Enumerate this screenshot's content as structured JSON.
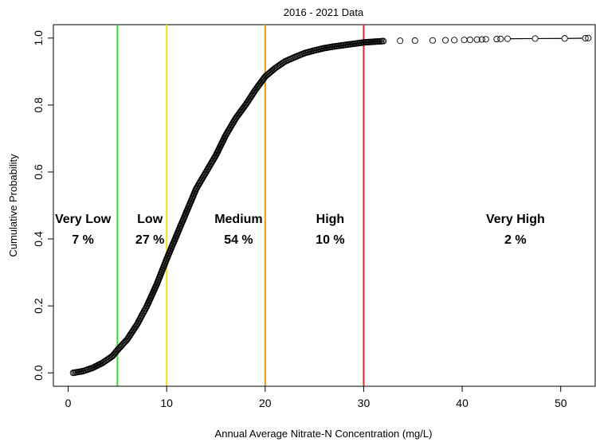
{
  "chart_data": {
    "type": "scatter",
    "title": "2016 - 2021 Data",
    "xlabel": "Annual Average Nitrate-N Concentration (mg/L)",
    "ylabel": "Cumulative Probability",
    "xlim": [
      -1.5,
      53.5
    ],
    "ylim": [
      -0.04,
      1.04
    ],
    "xticks": [
      0,
      10,
      20,
      30,
      40,
      50
    ],
    "yticks": [
      0.0,
      0.2,
      0.4,
      0.6,
      0.8,
      1.0
    ],
    "xtick_labels": [
      "0",
      "10",
      "20",
      "30",
      "40",
      "50"
    ],
    "ytick_labels": [
      "0.0",
      "0.2",
      "0.4",
      "0.6",
      "0.8",
      "1.0"
    ],
    "grid": false,
    "marker": "open circle",
    "series_color": "#000000",
    "thresholds": [
      {
        "x": 5,
        "color": "#33dd33"
      },
      {
        "x": 10,
        "color": "#f0e020"
      },
      {
        "x": 20,
        "color": "#e8951a"
      },
      {
        "x": 30,
        "color": "#e02828"
      }
    ],
    "annotations": [
      {
        "name": "Very Low",
        "percent": "7 %",
        "x": 1.5
      },
      {
        "name": "Low",
        "percent": "27 %",
        "x": 8.3
      },
      {
        "name": "Medium",
        "percent": "54 %",
        "x": 17.3
      },
      {
        "name": "High",
        "percent": "10 %",
        "x": 26.6
      },
      {
        "name": "Very High",
        "percent": "2 %",
        "x": 45.4
      }
    ],
    "ecdf_curve": [
      [
        0.5,
        0.0
      ],
      [
        1.5,
        0.005
      ],
      [
        2.5,
        0.015
      ],
      [
        3.5,
        0.03
      ],
      [
        4.5,
        0.05
      ],
      [
        5,
        0.068
      ],
      [
        6,
        0.1
      ],
      [
        7,
        0.145
      ],
      [
        8,
        0.2
      ],
      [
        9,
        0.265
      ],
      [
        10,
        0.34
      ],
      [
        11,
        0.41
      ],
      [
        12,
        0.48
      ],
      [
        13,
        0.55
      ],
      [
        14,
        0.6
      ],
      [
        15,
        0.65
      ],
      [
        16,
        0.71
      ],
      [
        17,
        0.76
      ],
      [
        18,
        0.8
      ],
      [
        19,
        0.845
      ],
      [
        20,
        0.885
      ],
      [
        21,
        0.91
      ],
      [
        22,
        0.93
      ],
      [
        23,
        0.943
      ],
      [
        24,
        0.955
      ],
      [
        25,
        0.963
      ],
      [
        26,
        0.97
      ],
      [
        27,
        0.975
      ],
      [
        28,
        0.979
      ],
      [
        29,
        0.983
      ],
      [
        30,
        0.987
      ],
      [
        31,
        0.989
      ],
      [
        32,
        0.991
      ]
    ],
    "tail_points": [
      [
        33.7,
        0.992
      ],
      [
        35.2,
        0.9925
      ],
      [
        37.0,
        0.993
      ],
      [
        38.3,
        0.9935
      ],
      [
        39.2,
        0.994
      ],
      [
        40.2,
        0.9945
      ],
      [
        40.8,
        0.995
      ],
      [
        41.5,
        0.9955
      ],
      [
        42.0,
        0.996
      ],
      [
        42.4,
        0.9965
      ],
      [
        43.5,
        0.997
      ],
      [
        43.9,
        0.9975
      ],
      [
        44.6,
        0.998
      ],
      [
        47.4,
        0.9985
      ],
      [
        50.4,
        0.999
      ],
      [
        52.5,
        0.9995
      ],
      [
        52.8,
        1.0
      ]
    ]
  }
}
